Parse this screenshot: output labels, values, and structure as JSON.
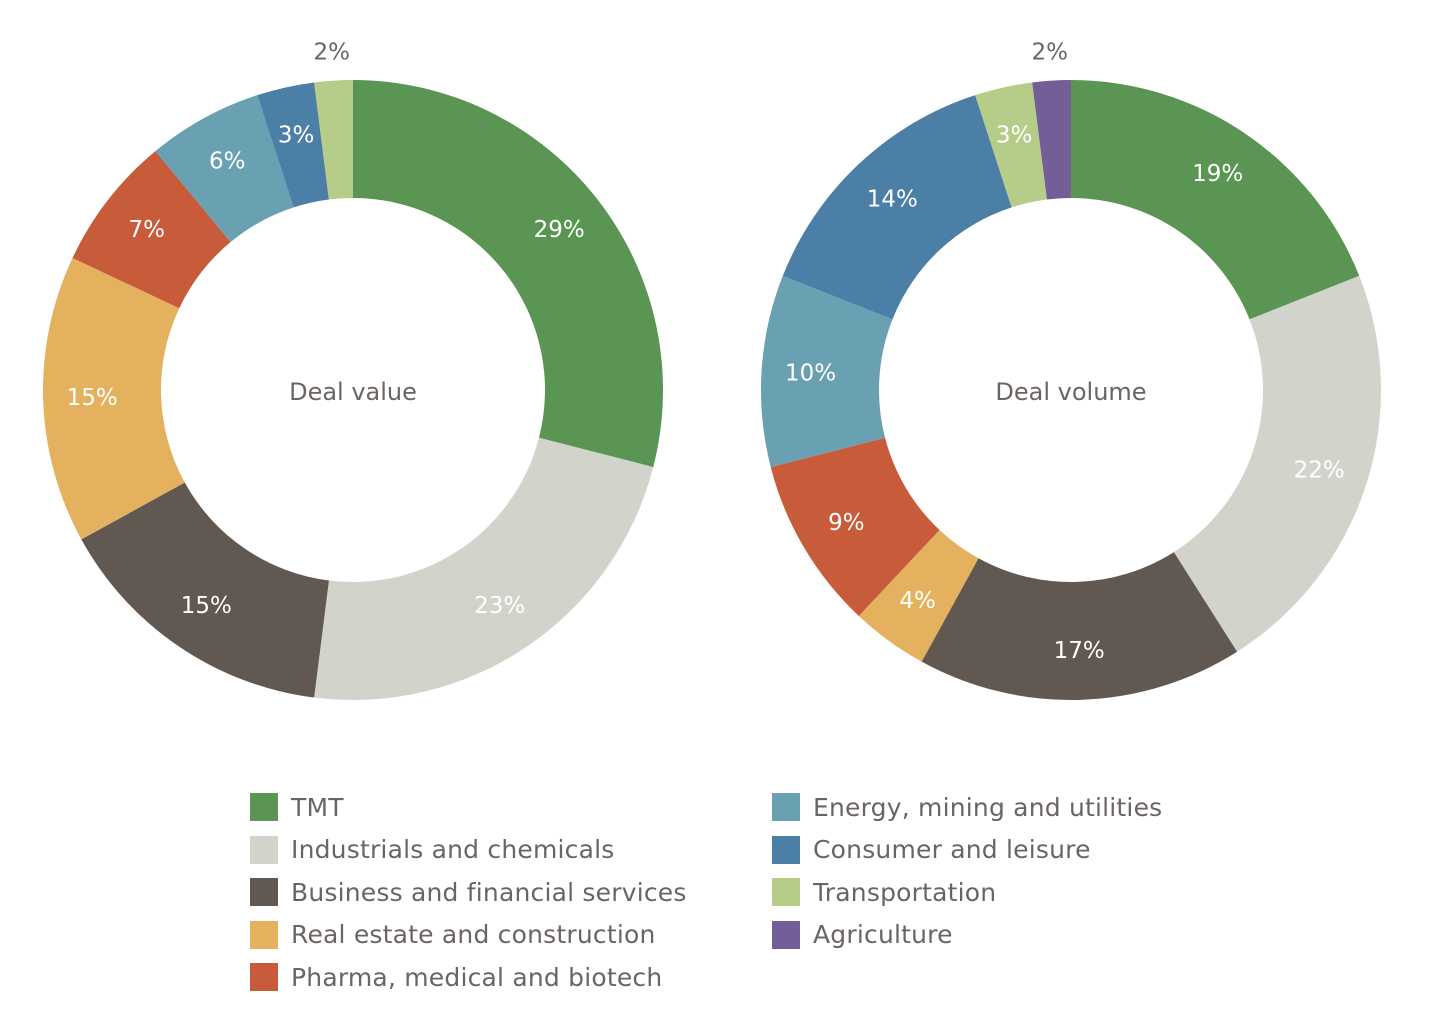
{
  "colors": {
    "TMT": "#5a9553",
    "Industrials and chemicals": "#d2d4cc",
    "Business and financial services": "#625852",
    "Real estate and construction": "#e4b25f",
    "Pharma, medical and biotech": "#c75b3a",
    "Energy, mining and utilities": "#69a0b2",
    "Consumer and leisure": "#4b7fa6",
    "Transportation": "#b5cd89",
    "Agriculture": "#735e97"
  },
  "legend": {
    "left": [
      "TMT",
      "Industrials and chemicals",
      "Business and financial services",
      "Real estate and construction",
      "Pharma, medical and biotech"
    ],
    "right": [
      "Energy, mining and utilities",
      "Consumer and leisure",
      "Transportation",
      "Agriculture"
    ]
  },
  "chart_data": [
    {
      "type": "pie",
      "donut": true,
      "center_label": "Deal value",
      "slices": [
        {
          "category": "TMT",
          "value": 29,
          "label": "29%"
        },
        {
          "category": "Industrials and chemicals",
          "value": 23,
          "label": "23%"
        },
        {
          "category": "Business and financial services",
          "value": 15,
          "label": "15%"
        },
        {
          "category": "Real estate and construction",
          "value": 15,
          "label": "15%"
        },
        {
          "category": "Pharma, medical and biotech",
          "value": 7,
          "label": "7%"
        },
        {
          "category": "Energy, mining and utilities",
          "value": 6,
          "label": "6%"
        },
        {
          "category": "Consumer and leisure",
          "value": 3,
          "label": "3%"
        },
        {
          "category": "Transportation",
          "value": 2,
          "label": "2%"
        }
      ]
    },
    {
      "type": "pie",
      "donut": true,
      "center_label": "Deal volume",
      "slices": [
        {
          "category": "TMT",
          "value": 19,
          "label": "19%"
        },
        {
          "category": "Industrials and chemicals",
          "value": 22,
          "label": "22%"
        },
        {
          "category": "Business and financial services",
          "value": 17,
          "label": "17%"
        },
        {
          "category": "Real estate and construction",
          "value": 4,
          "label": "4%"
        },
        {
          "category": "Pharma, medical and biotech",
          "value": 9,
          "label": "9%"
        },
        {
          "category": "Energy, mining and utilities",
          "value": 10,
          "label": "10%"
        },
        {
          "category": "Consumer and leisure",
          "value": 14,
          "label": "14%"
        },
        {
          "category": "Transportation",
          "value": 3,
          "label": "3%"
        },
        {
          "category": "Agriculture",
          "value": 2,
          "label": "2%"
        }
      ]
    }
  ]
}
